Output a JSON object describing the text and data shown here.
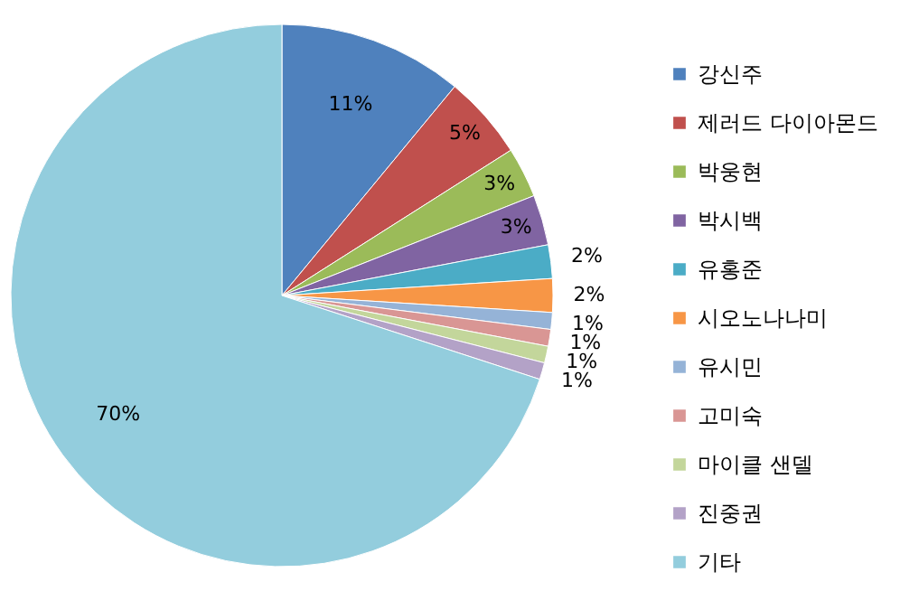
{
  "chart_data": {
    "type": "pie",
    "categories": [
      "강신주",
      "제러드 다이아몬드",
      "박웅현",
      "박시백",
      "유홍준",
      "시오노나나미",
      "유시민",
      "고미숙",
      "마이클 샌델",
      "진중권",
      "기타"
    ],
    "values": [
      11,
      5,
      3,
      3,
      2,
      2,
      1,
      1,
      1,
      1,
      70
    ],
    "colors": [
      "#4f81bd",
      "#c0504d",
      "#9bbb59",
      "#8064a2",
      "#4bacc6",
      "#f79646",
      "#95b3d7",
      "#d99694",
      "#c3d69b",
      "#b3a2c7",
      "#93cddd"
    ],
    "value_labels": [
      "11%",
      "5%",
      "3%",
      "3%",
      "2%",
      "2%",
      "1%",
      "1%",
      "1%",
      "1%",
      "70%"
    ],
    "legend": "right"
  }
}
